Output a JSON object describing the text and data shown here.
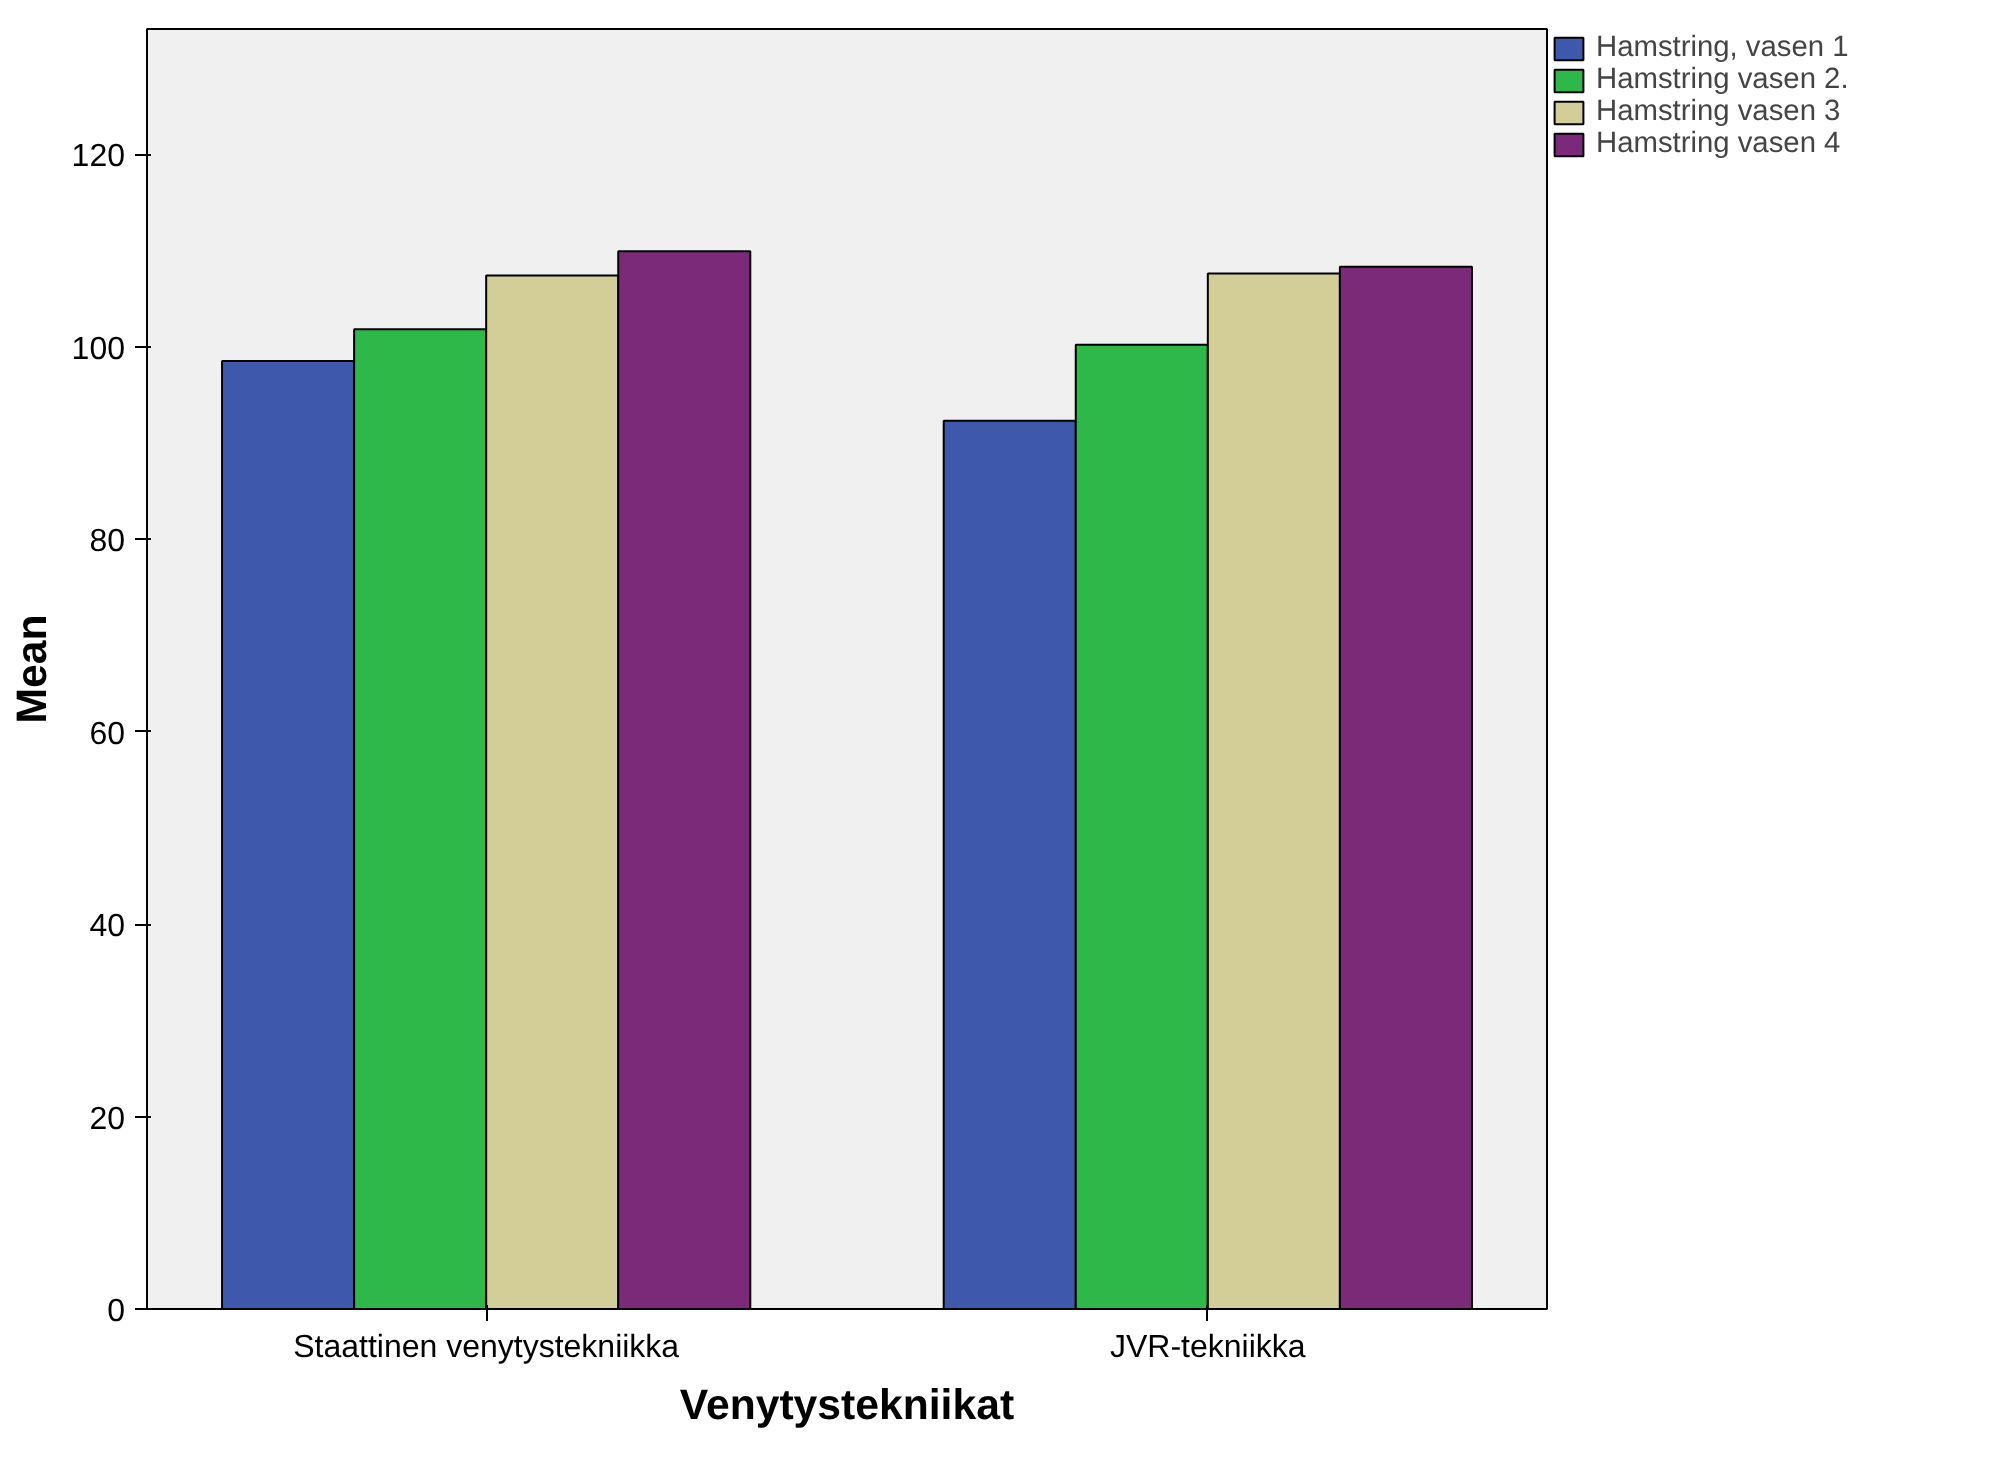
{
  "chart_data": {
    "type": "bar",
    "xlabel": "Venytystekniikat",
    "ylabel": "Mean",
    "categories": [
      "Staattinen venytystekniikka",
      "JVR-tekniikka"
    ],
    "series": [
      {
        "name": "Hamstring, vasen 1",
        "color": "#3e58ac",
        "values": [
          98.5,
          92.3
        ]
      },
      {
        "name": "Hamstring vasen 2.",
        "color": "#2fb84a",
        "values": [
          101.8,
          100.2
        ]
      },
      {
        "name": "Hamstring vasen 3",
        "color": "#d3ce97",
        "values": [
          107.4,
          107.6
        ]
      },
      {
        "name": "Hamstring vasen 4",
        "color": "#7b2979",
        "values": [
          109.9,
          108.3
        ]
      }
    ],
    "ylim": [
      0,
      133
    ],
    "yticks": [
      0,
      20,
      40,
      60,
      80,
      100,
      120
    ],
    "grid": false,
    "legend": "top right"
  }
}
